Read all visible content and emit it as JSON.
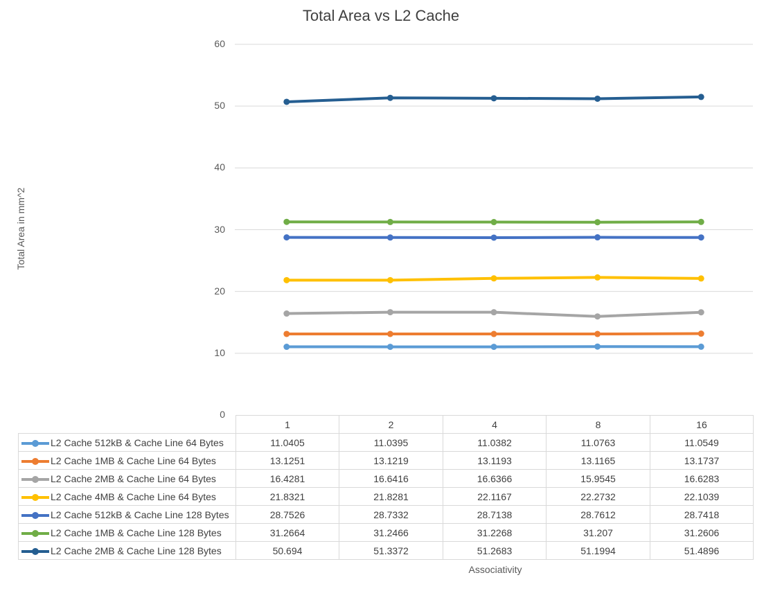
{
  "chart_data": {
    "type": "line",
    "title": "Total Area vs L2 Cache",
    "xlabel": "Associativity",
    "ylabel": "Total Area in mm^2",
    "categories": [
      "1",
      "2",
      "4",
      "8",
      "16"
    ],
    "ylim": [
      0,
      60
    ],
    "yticks": [
      0,
      10,
      20,
      30,
      40,
      50,
      60
    ],
    "grid": true,
    "legend": "data-table",
    "series": [
      {
        "name": "L2 Cache 512kB & Cache Line 64 Bytes",
        "color": "#5B9BD5",
        "values": [
          11.0405,
          11.0395,
          11.0382,
          11.0763,
          11.0549
        ],
        "labels": [
          "11.0405",
          "11.0395",
          "11.0382",
          "11.0763",
          "11.0549"
        ]
      },
      {
        "name": "L2 Cache 1MB & Cache Line 64 Bytes",
        "color": "#ED7D31",
        "values": [
          13.1251,
          13.1219,
          13.1193,
          13.1165,
          13.1737
        ],
        "labels": [
          "13.1251",
          "13.1219",
          "13.1193",
          "13.1165",
          "13.1737"
        ]
      },
      {
        "name": "L2 Cache 2MB & Cache Line 64 Bytes",
        "color": "#A5A5A5",
        "values": [
          16.4281,
          16.6416,
          16.6366,
          15.9545,
          16.6283
        ],
        "labels": [
          "16.4281",
          "16.6416",
          "16.6366",
          "15.9545",
          "16.6283"
        ]
      },
      {
        "name": "L2 Cache 4MB & Cache Line 64 Bytes",
        "color": "#FFC000",
        "values": [
          21.8321,
          21.8281,
          22.1167,
          22.2732,
          22.1039
        ],
        "labels": [
          "21.8321",
          "21.8281",
          "22.1167",
          "22.2732",
          "22.1039"
        ]
      },
      {
        "name": "L2 Cache 512kB & Cache Line 128 Bytes",
        "color": "#4472C4",
        "values": [
          28.7526,
          28.7332,
          28.7138,
          28.7612,
          28.7418
        ],
        "labels": [
          "28.7526",
          "28.7332",
          "28.7138",
          "28.7612",
          "28.7418"
        ]
      },
      {
        "name": "L2 Cache 1MB & Cache Line 128 Bytes",
        "color": "#70AD47",
        "values": [
          31.2664,
          31.2466,
          31.2268,
          31.207,
          31.2606
        ],
        "labels": [
          "31.2664",
          "31.2466",
          "31.2268",
          "31.207",
          "31.2606"
        ]
      },
      {
        "name": "L2 Cache 2MB & Cache Line 128 Bytes",
        "color": "#255E91",
        "values": [
          50.694,
          51.3372,
          51.2683,
          51.1994,
          51.4896
        ],
        "labels": [
          "50.694",
          "51.3372",
          "51.2683",
          "51.1994",
          "51.4896"
        ]
      }
    ]
  }
}
